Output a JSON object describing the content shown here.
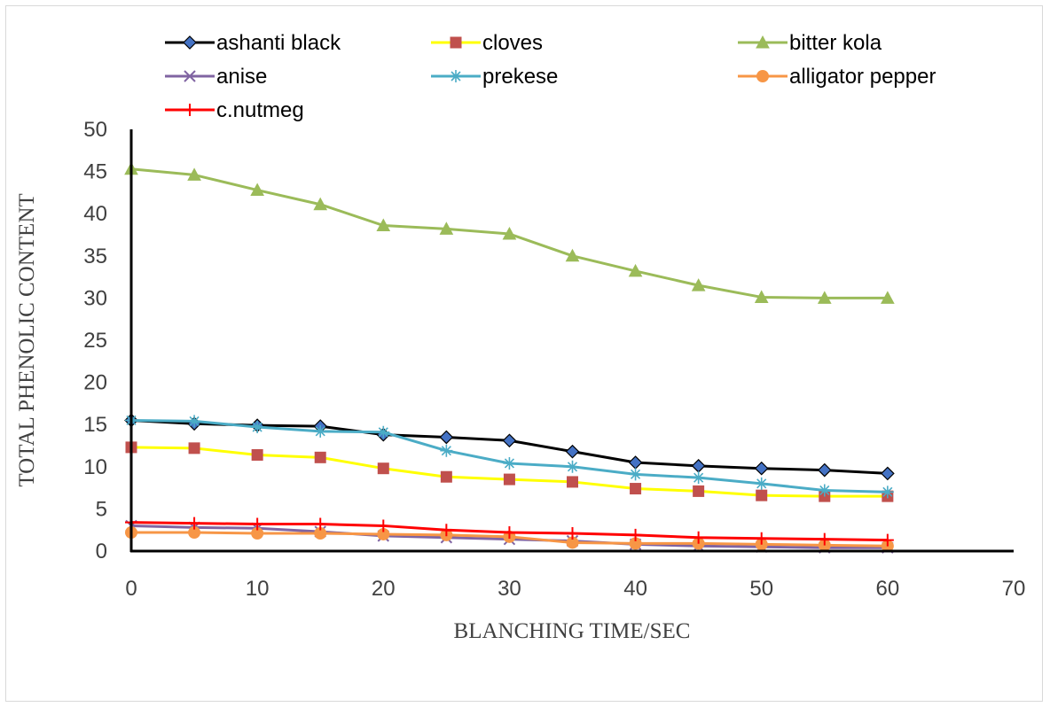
{
  "chart_data": {
    "type": "line",
    "xlabel": "BLANCHING TIME/SEC",
    "ylabel": "TOTAL PHENOLIC CONTENT",
    "xlim": [
      0,
      70
    ],
    "ylim": [
      0,
      50
    ],
    "x_ticks": [
      0,
      10,
      20,
      30,
      40,
      50,
      60,
      70
    ],
    "y_ticks": [
      0,
      5,
      10,
      15,
      20,
      25,
      30,
      35,
      40,
      45,
      50
    ],
    "grid": false,
    "legend_position": "top",
    "x": [
      0,
      5,
      10,
      15,
      20,
      25,
      30,
      35,
      40,
      45,
      50,
      55,
      60
    ],
    "series": [
      {
        "name": "ashanti black",
        "color": "#000000",
        "marker": "diamond",
        "marker_fill": "#4472c4",
        "values": [
          15.5,
          15.1,
          14.9,
          14.8,
          13.8,
          13.5,
          13.1,
          11.8,
          10.5,
          10.1,
          9.8,
          9.6,
          9.2
        ]
      },
      {
        "name": "cloves",
        "color": "#ffff00",
        "marker": "square",
        "marker_fill": "#c0504d",
        "values": [
          12.3,
          12.2,
          11.4,
          11.1,
          9.8,
          8.8,
          8.5,
          8.2,
          7.4,
          7.1,
          6.6,
          6.5,
          6.5
        ]
      },
      {
        "name": "bitter kola",
        "color": "#9bbb59",
        "marker": "triangle",
        "marker_fill": "#9bbb59",
        "values": [
          45.3,
          44.6,
          42.8,
          41.1,
          38.6,
          38.2,
          37.6,
          35.0,
          33.2,
          31.5,
          30.1,
          30.0,
          30.0
        ]
      },
      {
        "name": "anise",
        "color": "#8064a2",
        "marker": "x",
        "marker_fill": "#8064a2",
        "values": [
          3.0,
          2.8,
          2.7,
          2.3,
          1.8,
          1.6,
          1.4,
          1.2,
          0.8,
          0.6,
          0.5,
          0.4,
          0.4
        ]
      },
      {
        "name": "prekese",
        "color": "#4bacc6",
        "marker": "star",
        "marker_fill": "#4bacc6",
        "values": [
          15.5,
          15.4,
          14.7,
          14.2,
          14.1,
          11.9,
          10.4,
          10.0,
          9.1,
          8.7,
          8.0,
          7.2,
          7.0
        ]
      },
      {
        "name": "alligator pepper",
        "color": "#f79646",
        "marker": "circle",
        "marker_fill": "#f79646",
        "values": [
          2.2,
          2.2,
          2.1,
          2.1,
          2.0,
          1.9,
          1.7,
          1.0,
          0.9,
          0.9,
          0.8,
          0.7,
          0.6
        ]
      },
      {
        "name": "c.nutmeg",
        "color": "#ff0000",
        "marker": "plus",
        "marker_fill": "#ff0000",
        "values": [
          3.4,
          3.3,
          3.2,
          3.2,
          3.0,
          2.5,
          2.2,
          2.1,
          1.9,
          1.6,
          1.5,
          1.4,
          1.3
        ]
      }
    ]
  }
}
